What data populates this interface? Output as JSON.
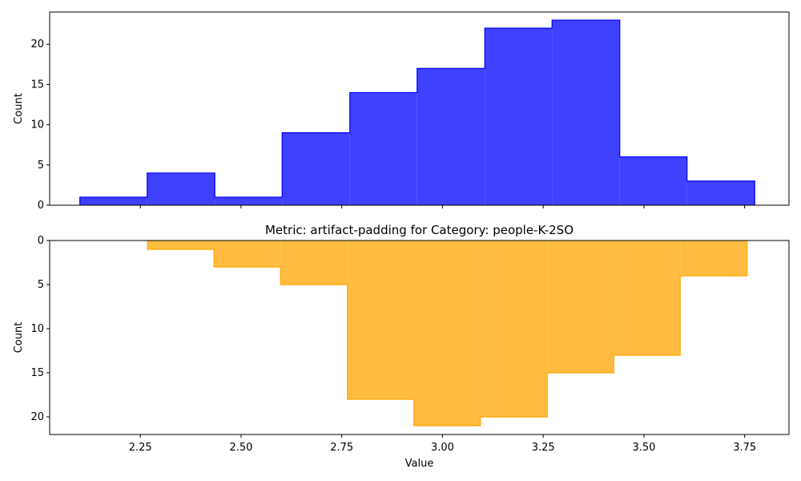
{
  "chart_data": [
    {
      "type": "histogram",
      "title": "",
      "xlabel": "",
      "ylabel": "Count",
      "ylim": [
        0,
        24
      ],
      "y_ticks": [
        0,
        5,
        10,
        15,
        20
      ],
      "orientation": "upward",
      "xlim": [
        2.025,
        3.86
      ],
      "x_ticks": [
        2.25,
        2.5,
        2.75,
        3.0,
        3.25,
        3.5,
        3.75
      ],
      "x_tick_labels_shown": false,
      "color": "#0000ff",
      "fill_opacity": 0.75,
      "bins": [
        {
          "x0": 2.1,
          "x1": 2.267,
          "count": 1
        },
        {
          "x0": 2.267,
          "x1": 2.435,
          "count": 4
        },
        {
          "x0": 2.435,
          "x1": 2.602,
          "count": 1
        },
        {
          "x0": 2.602,
          "x1": 2.77,
          "count": 9
        },
        {
          "x0": 2.77,
          "x1": 2.937,
          "count": 14
        },
        {
          "x0": 2.937,
          "x1": 3.105,
          "count": 17
        },
        {
          "x0": 3.105,
          "x1": 3.272,
          "count": 22
        },
        {
          "x0": 3.272,
          "x1": 3.44,
          "count": 23
        },
        {
          "x0": 3.44,
          "x1": 3.607,
          "count": 6
        },
        {
          "x0": 3.607,
          "x1": 3.775,
          "count": 3
        }
      ]
    },
    {
      "type": "histogram",
      "title": "Metric: artifact-padding for Category: people-K-2SO",
      "xlabel": "Value",
      "ylabel": "Count",
      "ylim": [
        0,
        22
      ],
      "y_ticks": [
        0,
        5,
        10,
        15,
        20
      ],
      "orientation": "inverted",
      "xlim": [
        2.025,
        3.86
      ],
      "x_ticks": [
        2.25,
        2.5,
        2.75,
        3.0,
        3.25,
        3.5,
        3.75
      ],
      "x_tick_labels": [
        "2.25",
        "2.50",
        "2.75",
        "3.00",
        "3.25",
        "3.50",
        "3.75"
      ],
      "x_tick_labels_shown": true,
      "color": "#ffa500",
      "fill_opacity": 0.75,
      "bins": [
        {
          "x0": 2.268,
          "x1": 2.433,
          "count": 1
        },
        {
          "x0": 2.433,
          "x1": 2.598,
          "count": 3
        },
        {
          "x0": 2.598,
          "x1": 2.764,
          "count": 5
        },
        {
          "x0": 2.764,
          "x1": 2.929,
          "count": 18
        },
        {
          "x0": 2.929,
          "x1": 3.094,
          "count": 21
        },
        {
          "x0": 3.094,
          "x1": 3.26,
          "count": 20
        },
        {
          "x0": 3.26,
          "x1": 3.425,
          "count": 15
        },
        {
          "x0": 3.425,
          "x1": 3.59,
          "count": 13
        },
        {
          "x0": 3.59,
          "x1": 3.756,
          "count": 4
        }
      ]
    }
  ]
}
